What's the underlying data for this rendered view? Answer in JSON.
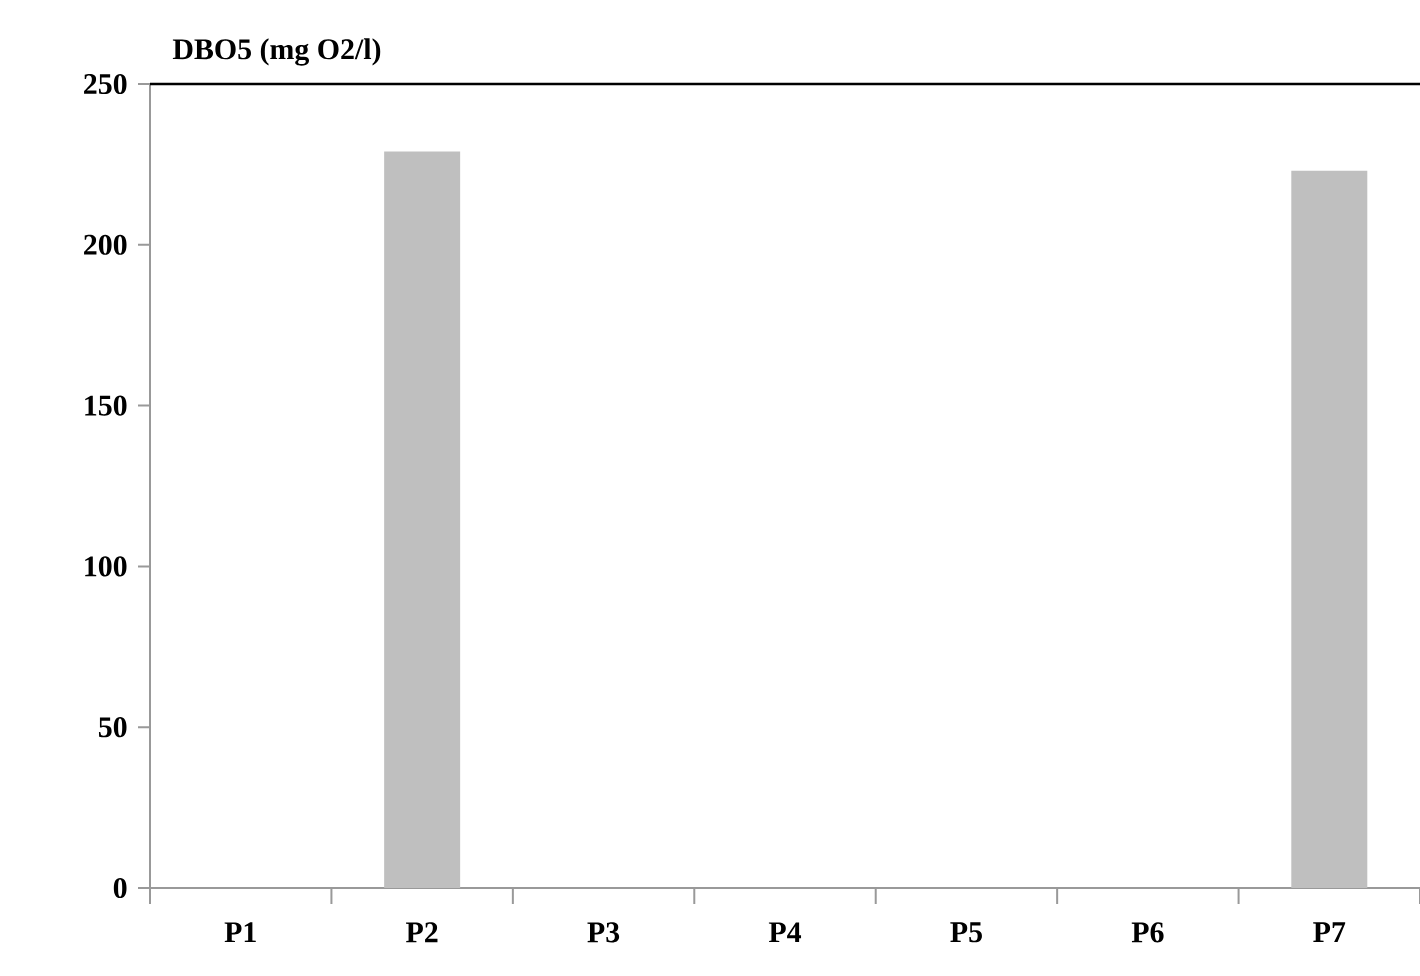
{
  "chart_data": {
    "type": "bar",
    "title": "DBO5 (mg O2/l)",
    "categories": [
      "P1",
      "P2",
      "P3",
      "P4",
      "P5",
      "P6",
      "P7"
    ],
    "values": [
      0,
      229,
      null,
      0,
      0,
      null,
      223
    ],
    "color": "#bfbfbf",
    "ylim": [
      0,
      250
    ],
    "yticks": [
      0,
      50,
      100,
      150,
      200,
      250
    ]
  }
}
